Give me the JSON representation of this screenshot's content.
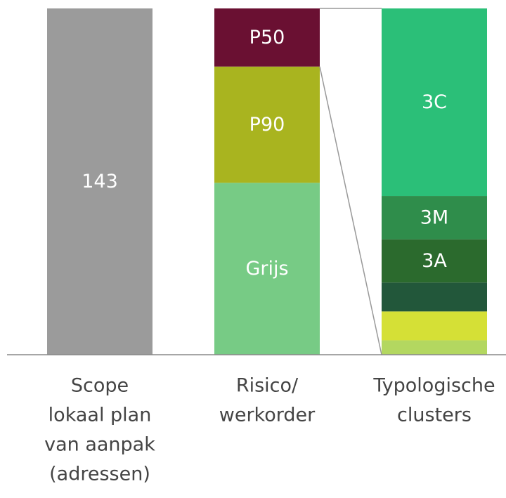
{
  "chart_data": {
    "type": "stacked-bar",
    "categories": [
      [
        "Scope",
        "lokaal plan",
        "van aanpak",
        "(adressen)"
      ],
      [
        "Risico/",
        "werkorder"
      ],
      [
        "Typologische",
        "clusters"
      ]
    ],
    "ylim": [
      0,
      143
    ],
    "bars": [
      {
        "segments": [
          {
            "label": "143",
            "value": 143,
            "color": "#9b9b9b"
          }
        ]
      },
      {
        "segments": [
          {
            "label": "Grijs",
            "value": 71,
            "color": "#77cb85"
          },
          {
            "label": "P90",
            "value": 48,
            "color": "#a9b41f"
          },
          {
            "label": "P50",
            "value": 24,
            "color": "#6a1032"
          }
        ]
      },
      {
        "ylim": [
          0,
          24
        ],
        "segments": [
          {
            "value": 1,
            "color": "#b3d760"
          },
          {
            "value": 2,
            "color": "#d5e036"
          },
          {
            "value": 2,
            "color": "#22573a"
          },
          {
            "label": "3A",
            "value": 3,
            "color": "#2b6a2d"
          },
          {
            "label": "3M",
            "value": 3,
            "color": "#2f8d4b"
          },
          {
            "label": "3C",
            "value": 13,
            "color": "#2bbf78"
          }
        ]
      }
    ]
  }
}
